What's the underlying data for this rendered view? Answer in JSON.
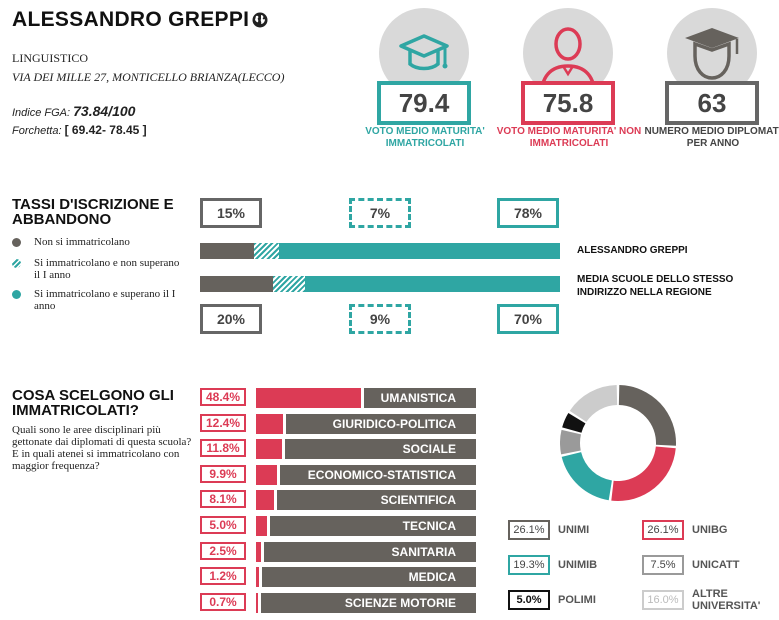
{
  "school": {
    "name": "ALESSANDRO GREPPI",
    "type": "LINGUISTICO",
    "address": "VIA DEI MILLE 27, MONTICELLO BRIANZA(LECCO)",
    "fga_label": "Indice FGA:",
    "fga_value": "73.84/100",
    "fork_label": "Forchetta:",
    "fork_value": "[ 69.42- 78.45 ]"
  },
  "stats": [
    {
      "value": "79.4",
      "label": "VOTO MEDIO MATURITA' IMMATRICOLATI",
      "icon": "graduation-cap-icon",
      "color": "#2fa6a3"
    },
    {
      "value": "75.8",
      "label": "VOTO MEDIO MATURITA' NON IMMATRICOLATI",
      "icon": "person-icon",
      "color": "#dc3b55"
    },
    {
      "value": "63",
      "label": "NUMERO MEDIO DIPLOMATI PER ANNO",
      "icon": "graduate-person-icon",
      "color": "#666666"
    }
  ],
  "enrollment": {
    "title": "TASSI D'ISCRIZIONE E ABBANDONO",
    "legend": [
      "Non si immatricolano",
      "Si immatricolano e non superano il I anno",
      "Si immatricolano e superano il I anno"
    ],
    "school_row": {
      "label": "ALESSANDRO GREPPI",
      "values": [
        15,
        7,
        78
      ],
      "labels": [
        "15%",
        "7%",
        "78%"
      ]
    },
    "region_row": {
      "label": "MEDIA SCUOLE DELLO STESSO INDIRIZZO NELLA REGIONE",
      "values": [
        20,
        9,
        70
      ],
      "labels": [
        "20%",
        "9%",
        "70%"
      ]
    }
  },
  "choices": {
    "title": "COSA SCELGONO GLI IMMATRICOLATI?",
    "question": "Quali sono le aree disciplinari più gettonate dai diplomati di questa scuola? E in quali atenei si immatricolano con maggior frequenza?",
    "disciplines": [
      {
        "pct": "48.4%",
        "value": 48.4,
        "name": "UMANISTICA"
      },
      {
        "pct": "12.4%",
        "value": 12.4,
        "name": "GIURIDICO-POLITICA"
      },
      {
        "pct": "11.8%",
        "value": 11.8,
        "name": "SOCIALE"
      },
      {
        "pct": "9.9%",
        "value": 9.9,
        "name": "ECONOMICO-STATISTICA"
      },
      {
        "pct": "8.1%",
        "value": 8.1,
        "name": "SCIENTIFICA"
      },
      {
        "pct": "5.0%",
        "value": 5.0,
        "name": "TECNICA"
      },
      {
        "pct": "2.5%",
        "value": 2.5,
        "name": "SANITARIA"
      },
      {
        "pct": "1.2%",
        "value": 1.2,
        "name": "MEDICA"
      },
      {
        "pct": "0.7%",
        "value": 0.7,
        "name": "SCIENZE MOTORIE"
      }
    ],
    "universities": [
      {
        "pct": "26.1%",
        "value": 26.1,
        "name": "UNIMI",
        "color": "#66625d"
      },
      {
        "pct": "26.1%",
        "value": 26.1,
        "name": "UNIBG",
        "color": "#dc3b55"
      },
      {
        "pct": "19.3%",
        "value": 19.3,
        "name": "UNIMIB",
        "color": "#2fa6a3"
      },
      {
        "pct": "7.5%",
        "value": 7.5,
        "name": "UNICATT",
        "color": "#9a9a9a"
      },
      {
        "pct": "5.0%",
        "value": 5.0,
        "name": "POLIMI",
        "color": "#111111"
      },
      {
        "pct": "16.0%",
        "value": 16.0,
        "name": "ALTRE UNIVERSITA'",
        "color": "#cccccc"
      }
    ]
  }
}
